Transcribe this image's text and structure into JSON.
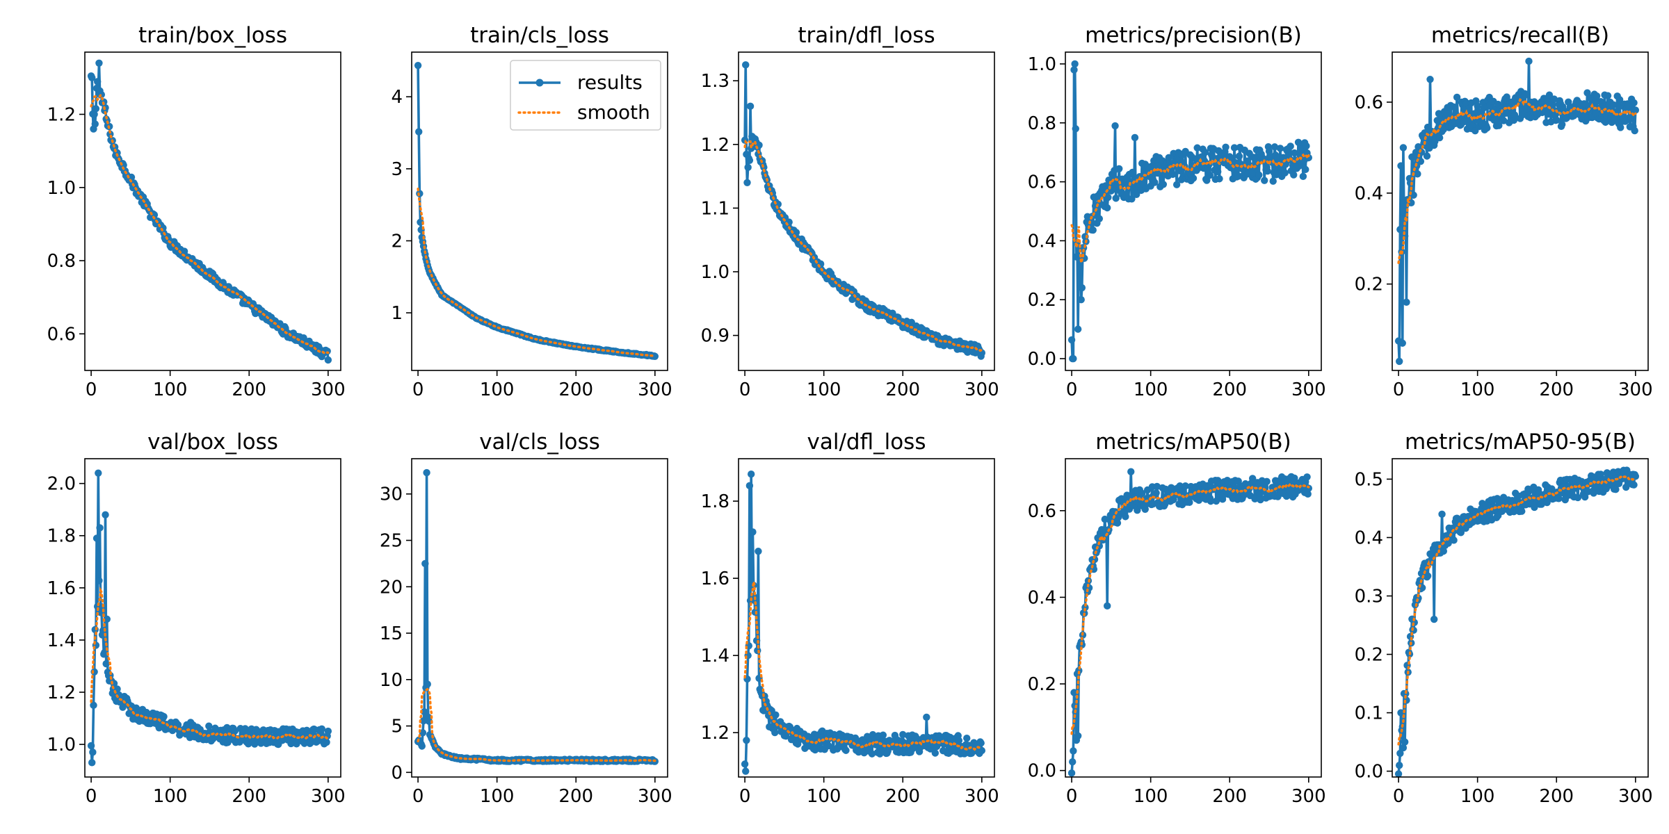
{
  "colors": {
    "results": "#1f77b4",
    "smooth": "#ff7f0e"
  },
  "legend": {
    "results_label": "results",
    "smooth_label": "smooth",
    "location": "top-right of train/cls_loss"
  },
  "chart_data": [
    {
      "type": "line",
      "title": "train/box_loss",
      "xlim": [
        -8,
        316
      ],
      "ylim": [
        0.5,
        1.37
      ],
      "xticks": [
        {
          "v": 0,
          "label": "0"
        },
        {
          "v": 100,
          "label": "100"
        },
        {
          "v": 200,
          "label": "200"
        },
        {
          "v": 300,
          "label": "300"
        }
      ],
      "yticks": [
        {
          "v": 0.6,
          "label": "0.6"
        },
        {
          "v": 0.8,
          "label": "0.8"
        },
        {
          "v": 1.0,
          "label": "1.0"
        },
        {
          "v": 1.2,
          "label": "1.2"
        }
      ],
      "key_x": [
        0,
        2,
        5,
        8,
        10,
        15,
        20,
        30,
        50,
        75,
        100,
        150,
        200,
        250,
        300
      ],
      "key_y": [
        1.3,
        1.2,
        1.18,
        1.3,
        1.27,
        1.23,
        1.18,
        1.1,
        1.02,
        0.93,
        0.85,
        0.76,
        0.68,
        0.6,
        0.54
      ],
      "noise": 0.012,
      "spikes": [
        [
          1,
          1.3
        ],
        [
          3,
          1.16
        ],
        [
          10,
          1.34
        ]
      ]
    },
    {
      "type": "line",
      "title": "train/cls_loss",
      "xlim": [
        -8,
        316
      ],
      "ylim": [
        0.2,
        4.62
      ],
      "legend": true,
      "xticks": [
        {
          "v": 0,
          "label": "0"
        },
        {
          "v": 100,
          "label": "100"
        },
        {
          "v": 200,
          "label": "200"
        },
        {
          "v": 300,
          "label": "300"
        }
      ],
      "yticks": [
        {
          "v": 1,
          "label": "1"
        },
        {
          "v": 2,
          "label": "2"
        },
        {
          "v": 3,
          "label": "3"
        },
        {
          "v": 4,
          "label": "4"
        }
      ],
      "key_x": [
        0,
        1,
        2,
        3,
        5,
        8,
        10,
        15,
        20,
        30,
        50,
        75,
        100,
        150,
        200,
        250,
        300
      ],
      "key_y": [
        4.43,
        3.52,
        2.65,
        2.25,
        2.05,
        1.85,
        1.75,
        1.55,
        1.45,
        1.25,
        1.1,
        0.92,
        0.8,
        0.63,
        0.53,
        0.46,
        0.4
      ],
      "noise": 0.008,
      "spikes": []
    },
    {
      "type": "line",
      "title": "train/dfl_loss",
      "xlim": [
        -8,
        316
      ],
      "ylim": [
        0.845,
        1.345
      ],
      "xticks": [
        {
          "v": 0,
          "label": "0"
        },
        {
          "v": 100,
          "label": "100"
        },
        {
          "v": 200,
          "label": "200"
        },
        {
          "v": 300,
          "label": "300"
        }
      ],
      "yticks": [
        {
          "v": 0.9,
          "label": "0.9"
        },
        {
          "v": 1.0,
          "label": "1.0"
        },
        {
          "v": 1.1,
          "label": "1.1"
        },
        {
          "v": 1.2,
          "label": "1.2"
        },
        {
          "v": 1.3,
          "label": "1.3"
        }
      ],
      "key_x": [
        0,
        3,
        8,
        12,
        20,
        30,
        50,
        75,
        100,
        150,
        200,
        250,
        300
      ],
      "key_y": [
        1.2,
        1.16,
        1.2,
        1.21,
        1.18,
        1.13,
        1.08,
        1.04,
        1.0,
        0.95,
        0.92,
        0.89,
        0.875
      ],
      "noise": 0.008,
      "spikes": [
        [
          1,
          1.325
        ],
        [
          3,
          1.14
        ],
        [
          7,
          1.26
        ]
      ]
    },
    {
      "type": "line",
      "title": "metrics/precision(B)",
      "xlim": [
        -8,
        316
      ],
      "ylim": [
        -0.04,
        1.04
      ],
      "xticks": [
        {
          "v": 0,
          "label": "0"
        },
        {
          "v": 100,
          "label": "100"
        },
        {
          "v": 200,
          "label": "200"
        },
        {
          "v": 300,
          "label": "300"
        }
      ],
      "yticks": [
        {
          "v": 0.0,
          "label": "0.0"
        },
        {
          "v": 0.2,
          "label": "0.2"
        },
        {
          "v": 0.4,
          "label": "0.4"
        },
        {
          "v": 0.6,
          "label": "0.6"
        },
        {
          "v": 0.8,
          "label": "0.8"
        },
        {
          "v": 1.0,
          "label": "1.0"
        }
      ],
      "key_x": [
        0,
        2,
        5,
        10,
        15,
        20,
        30,
        50,
        75,
        100,
        150,
        200,
        250,
        300
      ],
      "key_y": [
        0.0,
        0.3,
        0.35,
        0.3,
        0.35,
        0.45,
        0.5,
        0.58,
        0.6,
        0.63,
        0.66,
        0.67,
        0.66,
        0.68
      ],
      "noise": 0.06,
      "spikes": [
        [
          1,
          0.0
        ],
        [
          2,
          0.0
        ],
        [
          3,
          0.98
        ],
        [
          4,
          1.0
        ],
        [
          5,
          0.78
        ],
        [
          8,
          0.1
        ],
        [
          12,
          0.2
        ],
        [
          55,
          0.79
        ],
        [
          80,
          0.75
        ]
      ]
    },
    {
      "type": "line",
      "title": "metrics/recall(B)",
      "xlim": [
        -8,
        316
      ],
      "ylim": [
        0.01,
        0.71
      ],
      "xticks": [
        {
          "v": 0,
          "label": "0"
        },
        {
          "v": 100,
          "label": "100"
        },
        {
          "v": 200,
          "label": "200"
        },
        {
          "v": 300,
          "label": "300"
        }
      ],
      "yticks": [
        {
          "v": 0.2,
          "label": "0.2"
        },
        {
          "v": 0.4,
          "label": "0.4"
        },
        {
          "v": 0.6,
          "label": "0.6"
        }
      ],
      "key_x": [
        0,
        2,
        5,
        8,
        12,
        20,
        30,
        50,
        75,
        100,
        150,
        200,
        250,
        300
      ],
      "key_y": [
        0.03,
        0.2,
        0.25,
        0.33,
        0.38,
        0.45,
        0.5,
        0.55,
        0.58,
        0.57,
        0.59,
        0.58,
        0.59,
        0.57
      ],
      "noise": 0.035,
      "spikes": [
        [
          1,
          0.03
        ],
        [
          2,
          0.32
        ],
        [
          3,
          0.46
        ],
        [
          5,
          0.07
        ],
        [
          6,
          0.5
        ],
        [
          10,
          0.16
        ],
        [
          40,
          0.65
        ],
        [
          165,
          0.69
        ]
      ]
    },
    {
      "type": "line",
      "title": "val/box_loss",
      "xlim": [
        -8,
        316
      ],
      "ylim": [
        0.875,
        2.095
      ],
      "xticks": [
        {
          "v": 0,
          "label": "0"
        },
        {
          "v": 100,
          "label": "100"
        },
        {
          "v": 200,
          "label": "200"
        },
        {
          "v": 300,
          "label": "300"
        }
      ],
      "yticks": [
        {
          "v": 1.0,
          "label": "1.0"
        },
        {
          "v": 1.2,
          "label": "1.2"
        },
        {
          "v": 1.4,
          "label": "1.4"
        },
        {
          "v": 1.6,
          "label": "1.6"
        },
        {
          "v": 1.8,
          "label": "1.8"
        },
        {
          "v": 2.0,
          "label": "2.0"
        }
      ],
      "key_x": [
        0,
        5,
        10,
        14,
        20,
        30,
        50,
        75,
        100,
        150,
        200,
        250,
        300
      ],
      "key_y": [
        0.95,
        1.35,
        1.6,
        1.45,
        1.28,
        1.2,
        1.13,
        1.1,
        1.07,
        1.04,
        1.03,
        1.03,
        1.03
      ],
      "noise": 0.03,
      "spikes": [
        [
          1,
          0.93
        ],
        [
          2,
          0.97
        ],
        [
          3,
          1.15
        ],
        [
          5,
          1.44
        ],
        [
          7,
          1.79
        ],
        [
          9,
          2.04
        ],
        [
          11,
          1.83
        ],
        [
          14,
          1.42
        ],
        [
          18,
          1.88
        ],
        [
          20,
          1.48
        ]
      ]
    },
    {
      "type": "line",
      "title": "val/cls_loss",
      "xlim": [
        -8,
        316
      ],
      "ylim": [
        -0.5,
        33.8
      ],
      "xticks": [
        {
          "v": 0,
          "label": "0"
        },
        {
          "v": 100,
          "label": "100"
        },
        {
          "v": 200,
          "label": "200"
        },
        {
          "v": 300,
          "label": "300"
        }
      ],
      "yticks": [
        {
          "v": 0,
          "label": "0"
        },
        {
          "v": 5,
          "label": "5"
        },
        {
          "v": 10,
          "label": "10"
        },
        {
          "v": 15,
          "label": "15"
        },
        {
          "v": 20,
          "label": "20"
        },
        {
          "v": 25,
          "label": "25"
        },
        {
          "v": 30,
          "label": "30"
        }
      ],
      "key_x": [
        0,
        5,
        10,
        12,
        15,
        20,
        30,
        50,
        100,
        200,
        300
      ],
      "key_y": [
        3.5,
        3.0,
        9.0,
        7.0,
        4.0,
        3.0,
        2.0,
        1.5,
        1.3,
        1.3,
        1.3
      ],
      "noise": 0.12,
      "spikes": [
        [
          9,
          22.5
        ],
        [
          11,
          32.3
        ],
        [
          12,
          9.5
        ],
        [
          14,
          5.5
        ]
      ]
    },
    {
      "type": "line",
      "title": "val/dfl_loss",
      "xlim": [
        -8,
        316
      ],
      "ylim": [
        1.085,
        1.91
      ],
      "xticks": [
        {
          "v": 0,
          "label": "0"
        },
        {
          "v": 100,
          "label": "100"
        },
        {
          "v": 200,
          "label": "200"
        },
        {
          "v": 300,
          "label": "300"
        }
      ],
      "yticks": [
        {
          "v": 1.2,
          "label": "1.2"
        },
        {
          "v": 1.4,
          "label": "1.4"
        },
        {
          "v": 1.6,
          "label": "1.6"
        },
        {
          "v": 1.8,
          "label": "1.8"
        }
      ],
      "key_x": [
        0,
        5,
        10,
        14,
        20,
        30,
        50,
        75,
        100,
        150,
        200,
        250,
        300
      ],
      "key_y": [
        1.15,
        1.45,
        1.6,
        1.45,
        1.3,
        1.24,
        1.2,
        1.18,
        1.18,
        1.17,
        1.17,
        1.17,
        1.17
      ],
      "noise": 0.025,
      "spikes": [
        [
          1,
          1.1
        ],
        [
          2,
          1.18
        ],
        [
          4,
          1.4
        ],
        [
          6,
          1.84
        ],
        [
          8,
          1.87
        ],
        [
          10,
          1.72
        ],
        [
          14,
          1.54
        ],
        [
          17,
          1.67
        ],
        [
          230,
          1.24
        ]
      ]
    },
    {
      "type": "line",
      "title": "metrics/mAP50(B)",
      "xlim": [
        -8,
        316
      ],
      "ylim": [
        -0.015,
        0.72
      ],
      "xticks": [
        {
          "v": 0,
          "label": "0"
        },
        {
          "v": 100,
          "label": "100"
        },
        {
          "v": 200,
          "label": "200"
        },
        {
          "v": 300,
          "label": "300"
        }
      ],
      "yticks": [
        {
          "v": 0.0,
          "label": "0.0"
        },
        {
          "v": 0.2,
          "label": "0.2"
        },
        {
          "v": 0.4,
          "label": "0.4"
        },
        {
          "v": 0.6,
          "label": "0.6"
        }
      ],
      "key_x": [
        0,
        5,
        10,
        15,
        20,
        30,
        40,
        50,
        60,
        75,
        100,
        150,
        200,
        250,
        300
      ],
      "key_y": [
        0.02,
        0.15,
        0.25,
        0.35,
        0.42,
        0.5,
        0.55,
        0.58,
        0.6,
        0.62,
        0.63,
        0.64,
        0.65,
        0.65,
        0.66
      ],
      "noise": 0.025,
      "spikes": [
        [
          1,
          0.02
        ],
        [
          3,
          0.18
        ],
        [
          6,
          0.07
        ],
        [
          8,
          0.08
        ],
        [
          45,
          0.38
        ],
        [
          75,
          0.69
        ]
      ]
    },
    {
      "type": "line",
      "title": "metrics/mAP50-95(B)",
      "xlim": [
        -8,
        316
      ],
      "ylim": [
        -0.01,
        0.535
      ],
      "xticks": [
        {
          "v": 0,
          "label": "0"
        },
        {
          "v": 100,
          "label": "100"
        },
        {
          "v": 200,
          "label": "200"
        },
        {
          "v": 300,
          "label": "300"
        }
      ],
      "yticks": [
        {
          "v": 0.0,
          "label": "0.0"
        },
        {
          "v": 0.1,
          "label": "0.1"
        },
        {
          "v": 0.2,
          "label": "0.2"
        },
        {
          "v": 0.3,
          "label": "0.3"
        },
        {
          "v": 0.4,
          "label": "0.4"
        },
        {
          "v": 0.5,
          "label": "0.5"
        }
      ],
      "key_x": [
        0,
        5,
        10,
        15,
        20,
        30,
        40,
        50,
        60,
        75,
        100,
        150,
        200,
        250,
        300
      ],
      "key_y": [
        0.01,
        0.08,
        0.15,
        0.22,
        0.27,
        0.33,
        0.36,
        0.38,
        0.4,
        0.42,
        0.44,
        0.46,
        0.48,
        0.49,
        0.505
      ],
      "noise": 0.018,
      "spikes": [
        [
          1,
          0.01
        ],
        [
          3,
          0.1
        ],
        [
          6,
          0.04
        ],
        [
          8,
          0.05
        ],
        [
          45,
          0.26
        ],
        [
          55,
          0.44
        ],
        [
          280,
          0.51
        ]
      ]
    }
  ]
}
